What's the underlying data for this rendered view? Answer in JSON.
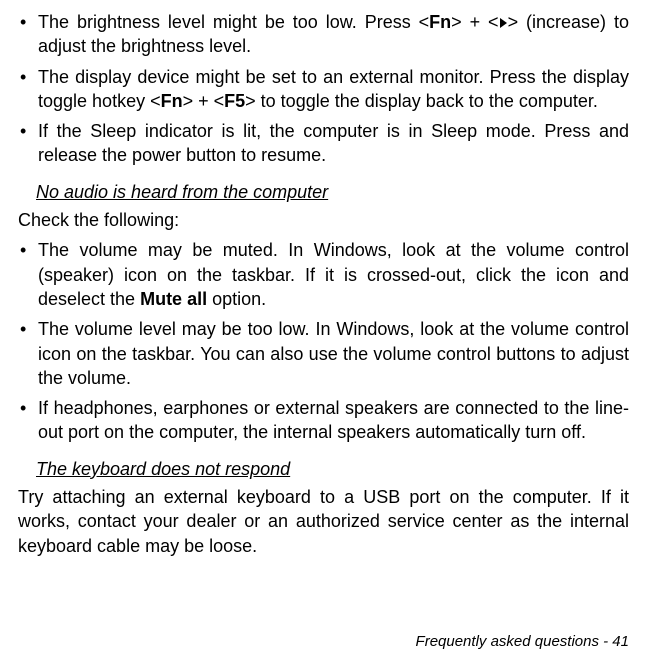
{
  "bullets1": [
    {
      "pre": "The brightness level might be too low. Press <",
      "fn": "Fn",
      "mid": "> + <",
      "after": "> (increase) to adjust the brightness level."
    },
    {
      "pre": "The display device might be set to an external monitor. Press the display toggle hotkey <",
      "fn": "Fn",
      "mid": "> + <",
      "f5": "F5",
      "after": "> to toggle the display back to the computer."
    },
    {
      "text": "If the Sleep indicator is lit, the computer is in Sleep mode. Press and release the power button to resume."
    }
  ],
  "heading2": "No audio is heard from the computer",
  "check": "Check the following:",
  "bullets2": [
    {
      "pre": "The volume may be muted. In Windows, look at the volume control (speaker) icon on the taskbar. If it is crossed-out, click the icon and deselect the ",
      "bold": "Mute all",
      "after": " option."
    },
    {
      "text": "The volume level may be too low. In Windows, look at the volume control icon on the taskbar. You can also use the volume control buttons to adjust the volume."
    },
    {
      "text": "If headphones, earphones or external speakers are connected to the line-out port on the computer, the internal speakers automatically turn off."
    }
  ],
  "heading3": "The keyboard does not respond",
  "para3": "Try attaching an external keyboard to a USB port on the computer. If it works, contact your dealer or an authorized service center as the internal keyboard cable may be loose.",
  "footer": "Frequently asked questions -  41"
}
